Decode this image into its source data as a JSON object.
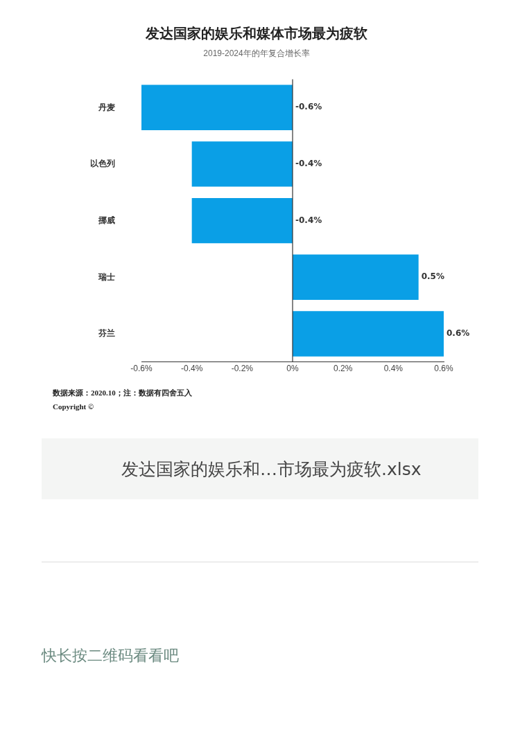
{
  "chart_data": {
    "type": "bar",
    "orientation": "horizontal",
    "title": "发达国家的娱乐和媒体市场最为疲软",
    "subtitle": "2019-2024年的年复合增长率",
    "categories": [
      "丹麦",
      "以色列",
      "挪威",
      "瑞士",
      "芬兰"
    ],
    "values": [
      -0.6,
      -0.4,
      -0.4,
      0.5,
      0.6
    ],
    "value_labels": [
      "-0.6%",
      "-0.4%",
      "-0.4%",
      "0.5%",
      "0.6%"
    ],
    "color": "#0a9fe6",
    "xlim": [
      -0.6,
      0.6
    ],
    "xticks": [
      {
        "value": -0.6,
        "label": "-0.6%"
      },
      {
        "value": -0.4,
        "label": "-0.4%"
      },
      {
        "value": -0.2,
        "label": "-0.2%"
      },
      {
        "value": 0,
        "label": "0%"
      },
      {
        "value": 0.2,
        "label": "0.2%"
      },
      {
        "value": 0.4,
        "label": "0.4%"
      },
      {
        "value": 0.6,
        "label": "0.6%"
      }
    ],
    "grid": false,
    "legend": false,
    "ref_lines": [
      {
        "axis": "x",
        "value": 0,
        "color": "#333333"
      }
    ],
    "annotations": [
      "数据来源：2020.10；注：数据有四舍五入",
      "Copyright ©",
      "发达国家的娱乐和…市场最为疲软.xlsx",
      "快长按二维码看看吧"
    ]
  }
}
